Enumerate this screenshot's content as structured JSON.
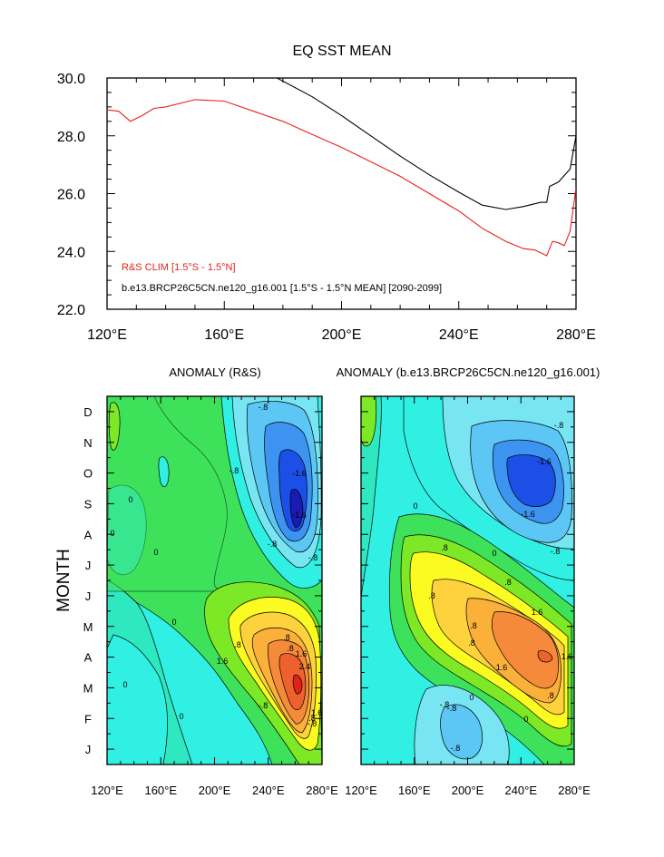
{
  "chart_data": [
    {
      "type": "line",
      "title": "EQ SST MEAN",
      "xlabel": "",
      "ylabel": "",
      "xlim": [
        120,
        280
      ],
      "ylim": [
        22,
        30
      ],
      "x_ticks": [
        120,
        160,
        200,
        240,
        280
      ],
      "x_tick_labels": [
        "120°E",
        "160°E",
        "200°E",
        "240°E",
        "280°E"
      ],
      "y_ticks": [
        22,
        24,
        26,
        28,
        30
      ],
      "y_tick_labels": [
        "22.0",
        "24.0",
        "26.0",
        "28.0",
        "30.0"
      ],
      "series": [
        {
          "name": "R&S CLIM [1.5°S - 1.5°N]",
          "color": "#e8211d",
          "x": [
            120,
            124,
            128,
            132,
            136,
            140,
            150,
            160,
            170,
            180,
            190,
            200,
            210,
            220,
            230,
            240,
            248,
            256,
            262,
            266,
            268,
            270,
            272,
            274,
            276,
            278,
            280
          ],
          "y": [
            28.9,
            28.85,
            28.5,
            28.7,
            28.95,
            29.0,
            29.25,
            29.2,
            28.85,
            28.5,
            28.05,
            27.6,
            27.1,
            26.6,
            26.0,
            25.4,
            24.8,
            24.35,
            24.1,
            24.05,
            23.95,
            23.85,
            24.35,
            24.3,
            24.2,
            24.7,
            26.2
          ]
        },
        {
          "name": "b.e13.BRCP26C5CN.ne120_g16.001 [1.5°S - 1.5°N MEAN] [2090-2099]",
          "color": "#000000",
          "x": [
            178,
            190,
            200,
            210,
            220,
            230,
            240,
            248,
            256,
            262,
            268,
            270,
            271,
            274,
            278,
            280
          ],
          "y": [
            30.0,
            29.35,
            28.7,
            28.0,
            27.3,
            26.65,
            26.05,
            25.6,
            25.45,
            25.55,
            25.7,
            25.7,
            26.25,
            26.4,
            26.85,
            28.0
          ]
        }
      ],
      "legend": [
        {
          "text": "R&S CLIM [1.5°S - 1.5°N]",
          "color": "#e8211d"
        },
        {
          "text": "b.e13.BRCP26C5CN.ne120_g16.001 [1.5°S - 1.5°N MEAN] [2090-2099]",
          "color": "#000000"
        }
      ]
    },
    {
      "type": "heatmap",
      "title": "ANOMALY (R&S)",
      "ylabel": "MONTH",
      "xlim": [
        120,
        280
      ],
      "y_tick_labels": [
        "J",
        "F",
        "M",
        "A",
        "M",
        "J",
        "J",
        "A",
        "S",
        "O",
        "N",
        "D"
      ],
      "x_tick_labels": [
        "120°E",
        "160°E",
        "200°E",
        "240°E",
        "280°E"
      ],
      "contour_levels": [
        -2.0,
        -1.6,
        -1.2,
        -0.8,
        -0.4,
        0,
        0.4,
        0.8,
        1.2,
        1.6,
        2.0,
        2.4,
        2.8
      ],
      "contour_labels": [
        "-.8",
        "-.8",
        "-.8",
        "-1.6",
        "-1.6",
        "-.8",
        "0",
        "0",
        "0",
        "0",
        "0",
        "0",
        ".8",
        ".8",
        "1.6",
        "1.6",
        "2.4",
        "-.8",
        ".8",
        "-.8",
        ".8",
        "1.6"
      ],
      "features": [
        {
          "kind": "min",
          "lon": 264,
          "month": 9.6,
          "value": -2.2
        },
        {
          "kind": "max",
          "lon": 265,
          "month": 3.6,
          "value": 2.8
        }
      ]
    },
    {
      "type": "heatmap",
      "title": "ANOMALY (b.e13.BRCP26C5CN.ne120_g16.001)",
      "ylabel": "",
      "xlim": [
        120,
        280
      ],
      "y_tick_labels": [
        "J",
        "F",
        "M",
        "A",
        "M",
        "J",
        "J",
        "A",
        "S",
        "O",
        "N",
        "D"
      ],
      "x_tick_labels": [
        "120°E",
        "160°E",
        "200°E",
        "240°E",
        "280°E"
      ],
      "contour_labels": [
        "-.8",
        "-1.6",
        "-1.6",
        "-.8",
        "-.8",
        "0",
        "0",
        "0",
        ".8",
        ".8",
        ".8",
        "1.6",
        "1.6",
        "1.6",
        ".8",
        ".8",
        "0",
        "-.8",
        "-.8",
        ".8"
      ],
      "features": [
        {
          "kind": "min",
          "lon": 258,
          "month": 9.8,
          "value": -1.9
        },
        {
          "kind": "max",
          "lon": 262,
          "month": 4.3,
          "value": 2.0
        }
      ]
    }
  ],
  "colors": {
    "scale": [
      "#1a1ab4",
      "#1c4fe6",
      "#3c93f0",
      "#5cc6f4",
      "#78e6f2",
      "#2ff0e3",
      "#2ee8c0",
      "#3ee15a",
      "#7de826",
      "#c4f21e",
      "#fbfb22",
      "#fed23c",
      "#fbb03a",
      "#f48a3a",
      "#ee612e",
      "#e2221a"
    ]
  }
}
